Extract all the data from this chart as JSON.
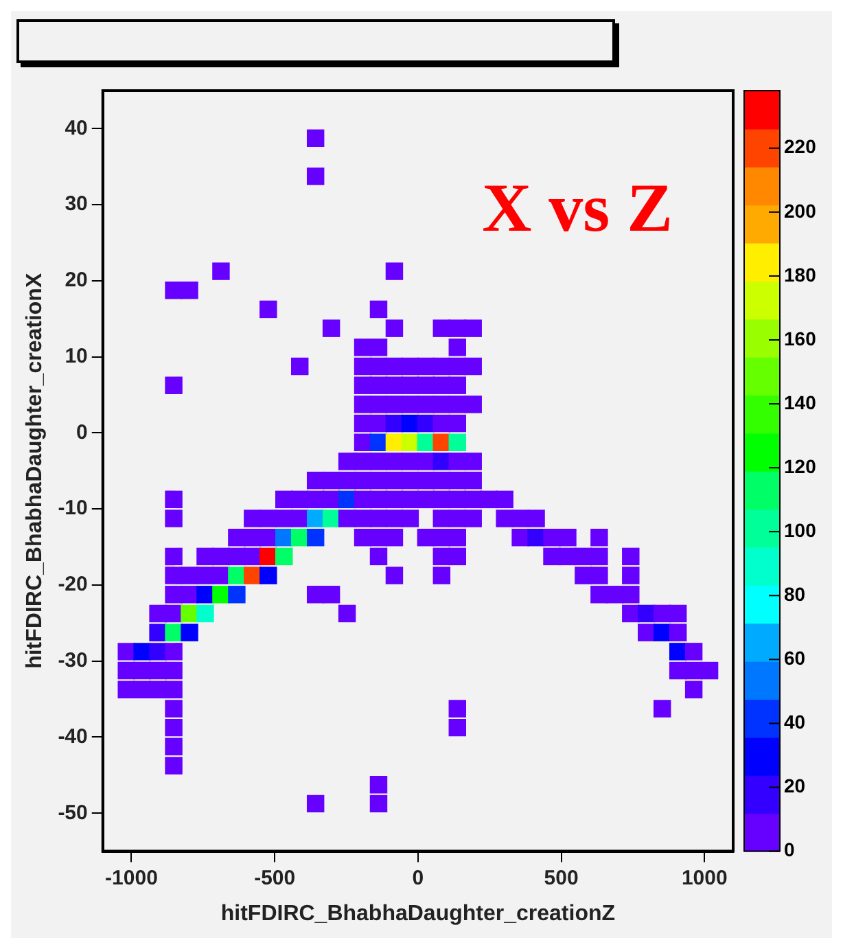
{
  "chart_data": {
    "type": "scatter",
    "xlabel": "hitFDIRC_BhabhaDaughter_creationZ",
    "ylabel": "hitFDIRC_BhabhaDaughter_creationX",
    "annotations": [
      "X vs Z"
    ],
    "marker": "square",
    "xlim": [
      -1100,
      1100
    ],
    "ylim": [
      -55,
      45
    ],
    "xticks": [
      -1000,
      -500,
      0,
      500,
      1000
    ],
    "yticks": [
      -50,
      -40,
      -30,
      -20,
      -10,
      0,
      10,
      20,
      30,
      40
    ],
    "clim": [
      0,
      238
    ],
    "cticks": [
      0,
      20,
      40,
      60,
      80,
      100,
      120,
      140,
      160,
      180,
      200,
      220
    ],
    "x": [
      -357.5,
      -357.5,
      -687.5,
      -82.5,
      -852.5,
      -797.5,
      -522.5,
      -137.5,
      -302.5,
      -82.5,
      82.5,
      137.5,
      192.5,
      -192.5,
      -137.5,
      137.5,
      -412.5,
      -192.5,
      -137.5,
      -82.5,
      -27.5,
      27.5,
      82.5,
      137.5,
      192.5,
      -852.5,
      -192.5,
      -137.5,
      -82.5,
      -27.5,
      27.5,
      82.5,
      137.5,
      -192.5,
      -137.5,
      -82.5,
      -27.5,
      27.5,
      82.5,
      137.5,
      192.5,
      -192.5,
      -137.5,
      -82.5,
      -27.5,
      27.5,
      82.5,
      137.5,
      -192.5,
      -137.5,
      -82.5,
      -27.5,
      27.5,
      82.5,
      137.5,
      -247.5,
      -192.5,
      -137.5,
      -82.5,
      -27.5,
      27.5,
      82.5,
      137.5,
      192.5,
      -357.5,
      -302.5,
      -247.5,
      -192.5,
      -137.5,
      -82.5,
      -27.5,
      27.5,
      82.5,
      137.5,
      192.5,
      -852.5,
      -467.5,
      -412.5,
      -357.5,
      -302.5,
      -247.5,
      -192.5,
      -137.5,
      -82.5,
      -27.5,
      27.5,
      82.5,
      137.5,
      192.5,
      247.5,
      302.5,
      -852.5,
      -577.5,
      -522.5,
      -467.5,
      -412.5,
      -357.5,
      -302.5,
      -247.5,
      -192.5,
      -137.5,
      -82.5,
      -27.5,
      82.5,
      137.5,
      192.5,
      302.5,
      357.5,
      412.5,
      -632.5,
      -577.5,
      -522.5,
      -467.5,
      -412.5,
      -357.5,
      -192.5,
      -137.5,
      -82.5,
      27.5,
      82.5,
      137.5,
      357.5,
      412.5,
      467.5,
      522.5,
      632.5,
      -852.5,
      -742.5,
      -687.5,
      -632.5,
      -577.5,
      -522.5,
      -467.5,
      -137.5,
      82.5,
      137.5,
      467.5,
      522.5,
      577.5,
      632.5,
      742.5,
      -852.5,
      -797.5,
      -742.5,
      -687.5,
      -632.5,
      -577.5,
      -522.5,
      -82.5,
      82.5,
      577.5,
      632.5,
      742.5,
      -852.5,
      -797.5,
      -742.5,
      -687.5,
      -632.5,
      -357.5,
      -302.5,
      632.5,
      687.5,
      742.5,
      -907.5,
      -852.5,
      -797.5,
      -742.5,
      -247.5,
      742.5,
      797.5,
      852.5,
      907.5,
      -907.5,
      -852.5,
      -797.5,
      797.5,
      852.5,
      907.5,
      -1017.5,
      -962.5,
      -907.5,
      -852.5,
      907.5,
      962.5,
      -1017.5,
      -962.5,
      -907.5,
      -852.5,
      907.5,
      962.5,
      1017.5,
      -1017.5,
      -962.5,
      -907.5,
      -852.5,
      962.5,
      -852.5,
      137.5,
      852.5,
      -852.5,
      137.5,
      -852.5,
      -852.5,
      -137.5,
      -357.5,
      -137.5
    ],
    "values": [
      38.75,
      33.75,
      21.25,
      21.25,
      18.75,
      18.75,
      16.25,
      16.25,
      13.75,
      13.75,
      13.75,
      13.75,
      13.75,
      11.25,
      11.25,
      11.25,
      8.75,
      8.75,
      8.75,
      8.75,
      8.75,
      8.75,
      8.75,
      8.75,
      8.75,
      6.25,
      6.25,
      6.25,
      6.25,
      6.25,
      6.25,
      6.25,
      6.25,
      3.75,
      3.75,
      3.75,
      3.75,
      3.75,
      3.75,
      3.75,
      3.75,
      1.25,
      1.25,
      1.25,
      1.25,
      1.25,
      1.25,
      1.25,
      -1.25,
      -1.25,
      -1.25,
      -1.25,
      -1.25,
      -1.25,
      -1.25,
      -3.75,
      -3.75,
      -3.75,
      -3.75,
      -3.75,
      -3.75,
      -3.75,
      -3.75,
      -3.75,
      -6.25,
      -6.25,
      -6.25,
      -6.25,
      -6.25,
      -6.25,
      -6.25,
      -6.25,
      -6.25,
      -6.25,
      -6.25,
      -8.75,
      -8.75,
      -8.75,
      -8.75,
      -8.75,
      -8.75,
      -8.75,
      -8.75,
      -8.75,
      -8.75,
      -8.75,
      -8.75,
      -8.75,
      -8.75,
      -8.75,
      -8.75,
      -11.25,
      -11.25,
      -11.25,
      -11.25,
      -11.25,
      -11.25,
      -11.25,
      -11.25,
      -11.25,
      -11.25,
      -11.25,
      -11.25,
      -11.25,
      -11.25,
      -11.25,
      -11.25,
      -11.25,
      -11.25,
      -13.75,
      -13.75,
      -13.75,
      -13.75,
      -13.75,
      -13.75,
      -13.75,
      -13.75,
      -13.75,
      -13.75,
      -13.75,
      -13.75,
      -13.75,
      -13.75,
      -13.75,
      -13.75,
      -13.75,
      -16.25,
      -16.25,
      -16.25,
      -16.25,
      -16.25,
      -16.25,
      -16.25,
      -16.25,
      -16.25,
      -16.25,
      -16.25,
      -16.25,
      -16.25,
      -16.25,
      -16.25,
      -18.75,
      -18.75,
      -18.75,
      -18.75,
      -18.75,
      -18.75,
      -18.75,
      -18.75,
      -18.75,
      -18.75,
      -18.75,
      -18.75,
      -21.25,
      -21.25,
      -21.25,
      -21.25,
      -21.25,
      -21.25,
      -21.25,
      -21.25,
      -21.25,
      -21.25,
      -23.75,
      -23.75,
      -23.75,
      -23.75,
      -23.75,
      -23.75,
      -23.75,
      -23.75,
      -23.75,
      -26.25,
      -26.25,
      -26.25,
      -26.25,
      -26.25,
      -26.25,
      -28.75,
      -28.75,
      -28.75,
      -28.75,
      -28.75,
      -28.75,
      -31.25,
      -31.25,
      -31.25,
      -31.25,
      -31.25,
      -31.25,
      -31.25,
      -33.75,
      -33.75,
      -33.75,
      -33.75,
      -33.75,
      -36.25,
      -36.25,
      -36.25,
      -38.75,
      -38.75,
      -41.25,
      -43.75,
      -46.25,
      -48.75,
      -48.75
    ],
    "cvalues": [
      5,
      5,
      5,
      5,
      5,
      5,
      5,
      5,
      5,
      5,
      5,
      5,
      5,
      5,
      5,
      5,
      5,
      5,
      5,
      5,
      5,
      5,
      5,
      5,
      5,
      5,
      5,
      5,
      5,
      5,
      5,
      5,
      5,
      5,
      5,
      5,
      5,
      5,
      5,
      5,
      5,
      5,
      5,
      20,
      35,
      20,
      5,
      5,
      5,
      45,
      185,
      170,
      107,
      220,
      107,
      5,
      5,
      5,
      5,
      5,
      5,
      20,
      5,
      5,
      5,
      5,
      5,
      5,
      5,
      5,
      5,
      5,
      5,
      5,
      5,
      5,
      5,
      5,
      5,
      5,
      45,
      5,
      5,
      5,
      5,
      5,
      5,
      5,
      5,
      5,
      5,
      5,
      5,
      5,
      5,
      5,
      70,
      107,
      5,
      5,
      5,
      5,
      5,
      5,
      5,
      5,
      5,
      5,
      5,
      5,
      5,
      5,
      58,
      115,
      45,
      5,
      5,
      5,
      5,
      5,
      5,
      5,
      20,
      5,
      5,
      5,
      5,
      5,
      5,
      5,
      5,
      232,
      115,
      5,
      5,
      5,
      5,
      5,
      5,
      5,
      5,
      5,
      5,
      5,
      5,
      115,
      220,
      35,
      5,
      5,
      5,
      5,
      5,
      5,
      5,
      35,
      130,
      45,
      5,
      5,
      5,
      5,
      5,
      5,
      5,
      150,
      95,
      5,
      5,
      20,
      5,
      5,
      20,
      115,
      35,
      5,
      35,
      5,
      5,
      35,
      20,
      5,
      35,
      5,
      5,
      5,
      5,
      5,
      5,
      5,
      5,
      5,
      5,
      5,
      5,
      5,
      5,
      5,
      5,
      5,
      5,
      5,
      5,
      5,
      5,
      5
    ]
  }
}
